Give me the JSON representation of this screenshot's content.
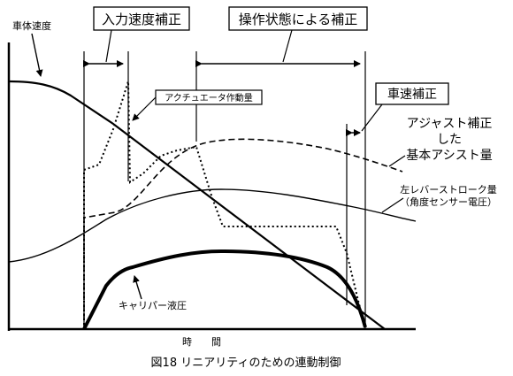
{
  "labels": {
    "vehicle_speed": "車体速度",
    "input_speed_correction": "入力速度補正",
    "operation_state_correction": "操作状態による補正",
    "vehicle_speed_correction": "車速補正",
    "actuator_operation_amount": "アクチュエータ作動量",
    "adjusted_basic_assist_line1": "アジャスト補正",
    "adjusted_basic_assist_line2": "した",
    "adjusted_basic_assist_line3": "基本アシスト量",
    "left_lever_stroke_line1": "左レバーストローク量",
    "left_lever_stroke_line2": "（角度センサー電圧）",
    "caliper_pressure": "キャリパー液圧",
    "x_axis_label": "時　　間"
  },
  "caption": "図18 リニアリティのための連動制御"
}
